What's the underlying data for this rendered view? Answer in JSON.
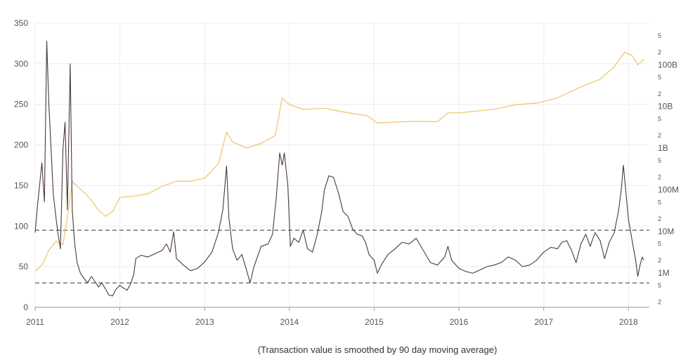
{
  "chart_data": {
    "type": "line",
    "footnote": "(Transaction value is smoothed by 90 day moving average)",
    "x_axis": {
      "range": [
        "2011-01-01",
        "2018-04-01"
      ],
      "ticks": [
        "2011",
        "2012",
        "2013",
        "2014",
        "2015",
        "2016",
        "2017",
        "2018"
      ]
    },
    "y_axis_left": {
      "range": [
        0,
        350
      ],
      "ticks": [
        0,
        50,
        100,
        150,
        200,
        250,
        300,
        350
      ]
    },
    "y_axis_right": {
      "scale": "log",
      "range": [
        150000,
        1000000000000
      ],
      "major_ticks": [
        {
          "value": 1000000,
          "label": "1M"
        },
        {
          "value": 10000000,
          "label": "10M"
        },
        {
          "value": 100000000,
          "label": "100M"
        },
        {
          "value": 1000000000,
          "label": "1B"
        },
        {
          "value": 10000000000,
          "label": "10B"
        },
        {
          "value": 100000000000,
          "label": "100B"
        }
      ],
      "minor_tick_labels": [
        "2",
        "5"
      ]
    },
    "reference_lines": [
      95,
      30
    ],
    "grid": true,
    "series": [
      {
        "axis": "left",
        "color": "#4a3a36",
        "points": [
          [
            "2011-01-01",
            92
          ],
          [
            "2011-01-10",
            122
          ],
          [
            "2011-01-20",
            150
          ],
          [
            "2011-01-30",
            178
          ],
          [
            "2011-02-10",
            130
          ],
          [
            "2011-02-20",
            328
          ],
          [
            "2011-03-01",
            250
          ],
          [
            "2011-03-10",
            198
          ],
          [
            "2011-03-20",
            140
          ],
          [
            "2011-04-01",
            110
          ],
          [
            "2011-04-10",
            90
          ],
          [
            "2011-04-20",
            72
          ],
          [
            "2011-05-01",
            195
          ],
          [
            "2011-05-10",
            228
          ],
          [
            "2011-05-20",
            120
          ],
          [
            "2011-06-01",
            300
          ],
          [
            "2011-06-10",
            120
          ],
          [
            "2011-06-20",
            80
          ],
          [
            "2011-07-01",
            55
          ],
          [
            "2011-07-15",
            42
          ],
          [
            "2011-08-01",
            35
          ],
          [
            "2011-08-15",
            30
          ],
          [
            "2011-09-01",
            38
          ],
          [
            "2011-09-15",
            32
          ],
          [
            "2011-10-01",
            25
          ],
          [
            "2011-10-15",
            30
          ],
          [
            "2011-11-01",
            22
          ],
          [
            "2011-11-15",
            15
          ],
          [
            "2011-12-01",
            14
          ],
          [
            "2011-12-15",
            22
          ],
          [
            "2012-01-01",
            27
          ],
          [
            "2012-01-15",
            24
          ],
          [
            "2012-02-01",
            21
          ],
          [
            "2012-02-15",
            28
          ],
          [
            "2012-03-01",
            40
          ],
          [
            "2012-03-10",
            60
          ],
          [
            "2012-04-01",
            64
          ],
          [
            "2012-05-01",
            62
          ],
          [
            "2012-06-01",
            66
          ],
          [
            "2012-07-01",
            70
          ],
          [
            "2012-07-20",
            78
          ],
          [
            "2012-08-05",
            68
          ],
          [
            "2012-08-20",
            93
          ],
          [
            "2012-09-01",
            60
          ],
          [
            "2012-10-01",
            52
          ],
          [
            "2012-11-01",
            45
          ],
          [
            "2012-12-01",
            48
          ],
          [
            "2013-01-01",
            56
          ],
          [
            "2013-02-01",
            68
          ],
          [
            "2013-03-01",
            92
          ],
          [
            "2013-03-20",
            120
          ],
          [
            "2013-04-05",
            174
          ],
          [
            "2013-04-15",
            110
          ],
          [
            "2013-05-01",
            72
          ],
          [
            "2013-05-20",
            58
          ],
          [
            "2013-06-10",
            65
          ],
          [
            "2013-07-01",
            45
          ],
          [
            "2013-07-15",
            30
          ],
          [
            "2013-08-01",
            50
          ],
          [
            "2013-09-01",
            75
          ],
          [
            "2013-10-01",
            78
          ],
          [
            "2013-10-20",
            90
          ],
          [
            "2013-11-05",
            135
          ],
          [
            "2013-11-20",
            190
          ],
          [
            "2013-12-01",
            175
          ],
          [
            "2013-12-10",
            190
          ],
          [
            "2013-12-25",
            150
          ],
          [
            "2014-01-05",
            75
          ],
          [
            "2014-01-20",
            85
          ],
          [
            "2014-02-10",
            80
          ],
          [
            "2014-03-01",
            95
          ],
          [
            "2014-03-20",
            72
          ],
          [
            "2014-04-10",
            68
          ],
          [
            "2014-05-01",
            90
          ],
          [
            "2014-05-20",
            118
          ],
          [
            "2014-06-01",
            145
          ],
          [
            "2014-06-20",
            162
          ],
          [
            "2014-07-10",
            160
          ],
          [
            "2014-08-01",
            140
          ],
          [
            "2014-08-20",
            118
          ],
          [
            "2014-09-10",
            112
          ],
          [
            "2014-10-01",
            96
          ],
          [
            "2014-10-20",
            90
          ],
          [
            "2014-11-10",
            88
          ],
          [
            "2014-11-25",
            80
          ],
          [
            "2014-12-10",
            65
          ],
          [
            "2015-01-01",
            58
          ],
          [
            "2015-01-15",
            42
          ],
          [
            "2015-02-01",
            52
          ],
          [
            "2015-03-01",
            65
          ],
          [
            "2015-04-01",
            72
          ],
          [
            "2015-05-01",
            80
          ],
          [
            "2015-06-01",
            78
          ],
          [
            "2015-07-01",
            85
          ],
          [
            "2015-08-01",
            70
          ],
          [
            "2015-09-01",
            55
          ],
          [
            "2015-10-01",
            52
          ],
          [
            "2015-11-01",
            62
          ],
          [
            "2015-11-15",
            75
          ],
          [
            "2015-12-01",
            58
          ],
          [
            "2016-01-01",
            48
          ],
          [
            "2016-02-01",
            44
          ],
          [
            "2016-03-01",
            42
          ],
          [
            "2016-04-01",
            46
          ],
          [
            "2016-05-01",
            50
          ],
          [
            "2016-06-01",
            52
          ],
          [
            "2016-07-01",
            55
          ],
          [
            "2016-08-01",
            62
          ],
          [
            "2016-09-01",
            58
          ],
          [
            "2016-10-01",
            50
          ],
          [
            "2016-11-01",
            52
          ],
          [
            "2016-12-01",
            58
          ],
          [
            "2017-01-01",
            68
          ],
          [
            "2017-02-01",
            74
          ],
          [
            "2017-03-01",
            72
          ],
          [
            "2017-03-20",
            80
          ],
          [
            "2017-04-10",
            82
          ],
          [
            "2017-05-01",
            70
          ],
          [
            "2017-05-20",
            55
          ],
          [
            "2017-06-10",
            78
          ],
          [
            "2017-07-01",
            90
          ],
          [
            "2017-07-20",
            75
          ],
          [
            "2017-08-10",
            92
          ],
          [
            "2017-09-01",
            82
          ],
          [
            "2017-09-20",
            60
          ],
          [
            "2017-10-10",
            80
          ],
          [
            "2017-11-01",
            92
          ],
          [
            "2017-11-20",
            120
          ],
          [
            "2017-12-01",
            145
          ],
          [
            "2017-12-10",
            175
          ],
          [
            "2017-12-20",
            145
          ],
          [
            "2018-01-01",
            108
          ],
          [
            "2018-01-15",
            85
          ],
          [
            "2018-02-01",
            58
          ],
          [
            "2018-02-10",
            38
          ],
          [
            "2018-02-20",
            52
          ],
          [
            "2018-03-01",
            62
          ],
          [
            "2018-03-08",
            58
          ]
        ]
      },
      {
        "axis": "right",
        "color": "#f0c870",
        "points": [
          [
            "2011-01-01",
            1100000
          ],
          [
            "2011-02-01",
            1600000
          ],
          [
            "2011-03-01",
            3500000
          ],
          [
            "2011-04-01",
            5800000
          ],
          [
            "2011-05-01",
            4800000
          ],
          [
            "2011-05-20",
            22000000
          ],
          [
            "2011-06-10",
            160000000
          ],
          [
            "2011-07-01",
            120000000
          ],
          [
            "2011-08-01",
            85000000
          ],
          [
            "2011-09-01",
            55000000
          ],
          [
            "2011-10-01",
            32000000
          ],
          [
            "2011-11-01",
            23000000
          ],
          [
            "2011-12-01",
            30000000
          ],
          [
            "2012-01-01",
            65000000
          ],
          [
            "2012-03-01",
            70000000
          ],
          [
            "2012-05-01",
            80000000
          ],
          [
            "2012-07-01",
            120000000
          ],
          [
            "2012-09-01",
            160000000
          ],
          [
            "2012-11-01",
            160000000
          ],
          [
            "2013-01-01",
            190000000
          ],
          [
            "2013-03-01",
            420000000
          ],
          [
            "2013-04-05",
            2400000000
          ],
          [
            "2013-05-01",
            1400000000
          ],
          [
            "2013-07-01",
            1000000000
          ],
          [
            "2013-09-01",
            1300000000
          ],
          [
            "2013-11-01",
            2000000000
          ],
          [
            "2013-12-01",
            16000000000
          ],
          [
            "2014-01-01",
            11000000000
          ],
          [
            "2014-03-01",
            8500000000
          ],
          [
            "2014-06-01",
            9000000000
          ],
          [
            "2014-09-01",
            7200000000
          ],
          [
            "2014-12-01",
            6000000000
          ],
          [
            "2015-01-15",
            4000000000
          ],
          [
            "2015-04-01",
            4200000000
          ],
          [
            "2015-07-01",
            4400000000
          ],
          [
            "2015-10-01",
            4300000000
          ],
          [
            "2015-11-15",
            7000000000
          ],
          [
            "2016-01-01",
            7000000000
          ],
          [
            "2016-06-01",
            8500000000
          ],
          [
            "2016-09-01",
            11000000000
          ],
          [
            "2016-12-01",
            12000000000
          ],
          [
            "2017-03-01",
            16000000000
          ],
          [
            "2017-06-01",
            28000000000
          ],
          [
            "2017-09-01",
            45000000000
          ],
          [
            "2017-11-01",
            90000000000
          ],
          [
            "2017-12-15",
            200000000000
          ],
          [
            "2018-01-15",
            170000000000
          ],
          [
            "2018-02-10",
            100000000000
          ],
          [
            "2018-03-08",
            135000000000
          ]
        ]
      }
    ]
  }
}
